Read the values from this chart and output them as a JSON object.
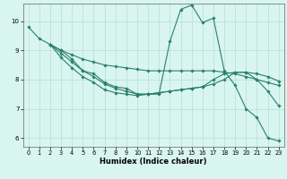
{
  "xlabel": "Humidex (Indice chaleur)",
  "ylabel": "",
  "background_color": "#d8f5f0",
  "grid_color": "#b8ddd8",
  "line_color": "#2a7f6f",
  "xlim": [
    -0.5,
    23.5
  ],
  "ylim": [
    5.7,
    10.6
  ],
  "yticks": [
    6,
    7,
    8,
    9,
    10
  ],
  "xticks": [
    0,
    1,
    2,
    3,
    4,
    5,
    6,
    7,
    8,
    9,
    10,
    11,
    12,
    13,
    14,
    15,
    16,
    17,
    18,
    19,
    20,
    21,
    22,
    23
  ],
  "lines": [
    {
      "x": [
        0,
        1,
        2,
        3,
        4,
        5,
        6,
        7,
        8,
        9,
        10,
        11,
        12,
        13,
        14,
        15,
        16,
        17,
        18,
        19,
        20,
        21,
        22,
        23
      ],
      "y": [
        9.8,
        9.4,
        9.2,
        9.0,
        8.7,
        8.3,
        8.2,
        7.9,
        7.75,
        7.7,
        7.5,
        7.5,
        7.5,
        9.3,
        10.4,
        10.55,
        9.95,
        10.1,
        8.3,
        7.8,
        7.0,
        6.7,
        6.0,
        5.9
      ]
    },
    {
      "x": [
        2,
        3,
        4,
        5,
        6,
        7,
        8,
        9,
        10,
        11,
        12,
        13,
        14,
        15,
        16,
        17,
        18,
        19,
        20,
        21,
        22,
        23
      ],
      "y": [
        9.2,
        9.0,
        8.85,
        8.7,
        8.6,
        8.5,
        8.45,
        8.4,
        8.35,
        8.3,
        8.3,
        8.3,
        8.3,
        8.3,
        8.3,
        8.3,
        8.25,
        8.2,
        8.1,
        8.0,
        7.9,
        7.8
      ]
    },
    {
      "x": [
        2,
        3,
        4,
        5,
        6,
        7,
        8,
        9,
        10,
        11,
        12,
        13,
        14,
        15,
        16,
        17,
        18,
        19,
        20,
        21,
        22,
        23
      ],
      "y": [
        9.2,
        8.9,
        8.6,
        8.3,
        8.1,
        7.85,
        7.7,
        7.6,
        7.5,
        7.5,
        7.55,
        7.6,
        7.65,
        7.7,
        7.75,
        8.0,
        8.2,
        8.25,
        8.25,
        8.2,
        8.1,
        7.95
      ]
    },
    {
      "x": [
        2,
        3,
        4,
        5,
        6,
        7,
        8,
        9,
        10,
        11,
        12,
        13,
        14,
        15,
        16,
        17,
        18,
        19,
        20,
        21,
        22,
        23
      ],
      "y": [
        9.2,
        8.75,
        8.4,
        8.1,
        7.9,
        7.65,
        7.55,
        7.5,
        7.45,
        7.5,
        7.55,
        7.6,
        7.65,
        7.7,
        7.75,
        7.85,
        8.0,
        8.25,
        8.25,
        8.0,
        7.6,
        7.1
      ]
    }
  ]
}
